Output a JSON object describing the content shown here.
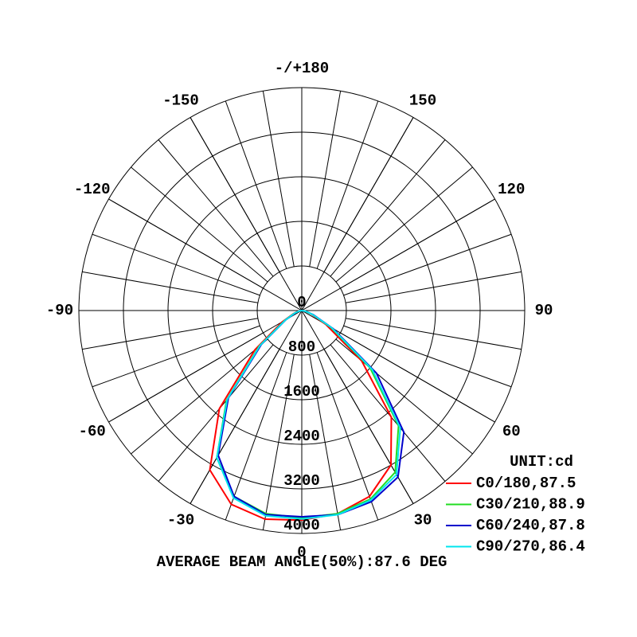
{
  "chart_data": {
    "type": "polar",
    "title": "AVERAGE BEAM ANGLE(50%):87.6 DEG",
    "unit_label": "UNIT:cd",
    "x": [
      -90,
      -80,
      -70,
      -60,
      -50,
      -40,
      -30,
      -20,
      -10,
      0,
      10,
      20,
      30,
      40,
      50,
      60,
      70,
      80,
      90
    ],
    "series": [
      {
        "name": "C0/180,87.5",
        "color": "#ff0000",
        "values": [
          0,
          60,
          150,
          400,
          1100,
          2300,
          3300,
          3700,
          3800,
          3760,
          3700,
          3550,
          3200,
          2500,
          1400,
          500,
          180,
          60,
          0
        ]
      },
      {
        "name": "C30/210,88.9",
        "color": "#22dd22",
        "values": [
          0,
          50,
          130,
          350,
          1000,
          2100,
          3050,
          3550,
          3700,
          3720,
          3700,
          3600,
          3350,
          2700,
          1600,
          600,
          200,
          60,
          0
        ]
      },
      {
        "name": "C60/240,87.8",
        "color": "#0000cc",
        "values": [
          0,
          50,
          120,
          330,
          950,
          2050,
          3000,
          3550,
          3720,
          3700,
          3720,
          3650,
          3450,
          2850,
          1750,
          650,
          220,
          70,
          0
        ]
      },
      {
        "name": "C90/270,86.4",
        "color": "#00e5ee",
        "values": [
          0,
          50,
          130,
          340,
          980,
          2080,
          3050,
          3580,
          3740,
          3740,
          3720,
          3620,
          3400,
          2750,
          1650,
          620,
          200,
          60,
          0
        ]
      }
    ],
    "rlim": [
      0,
      4000
    ],
    "rticks": [
      0,
      800,
      1600,
      2400,
      3200,
      4000
    ],
    "thetaticks": [
      0,
      30,
      60,
      90,
      120,
      150,
      {
        "value": 180,
        "label": "-/+180"
      },
      -150,
      -120,
      -90,
      -60,
      -30
    ]
  }
}
